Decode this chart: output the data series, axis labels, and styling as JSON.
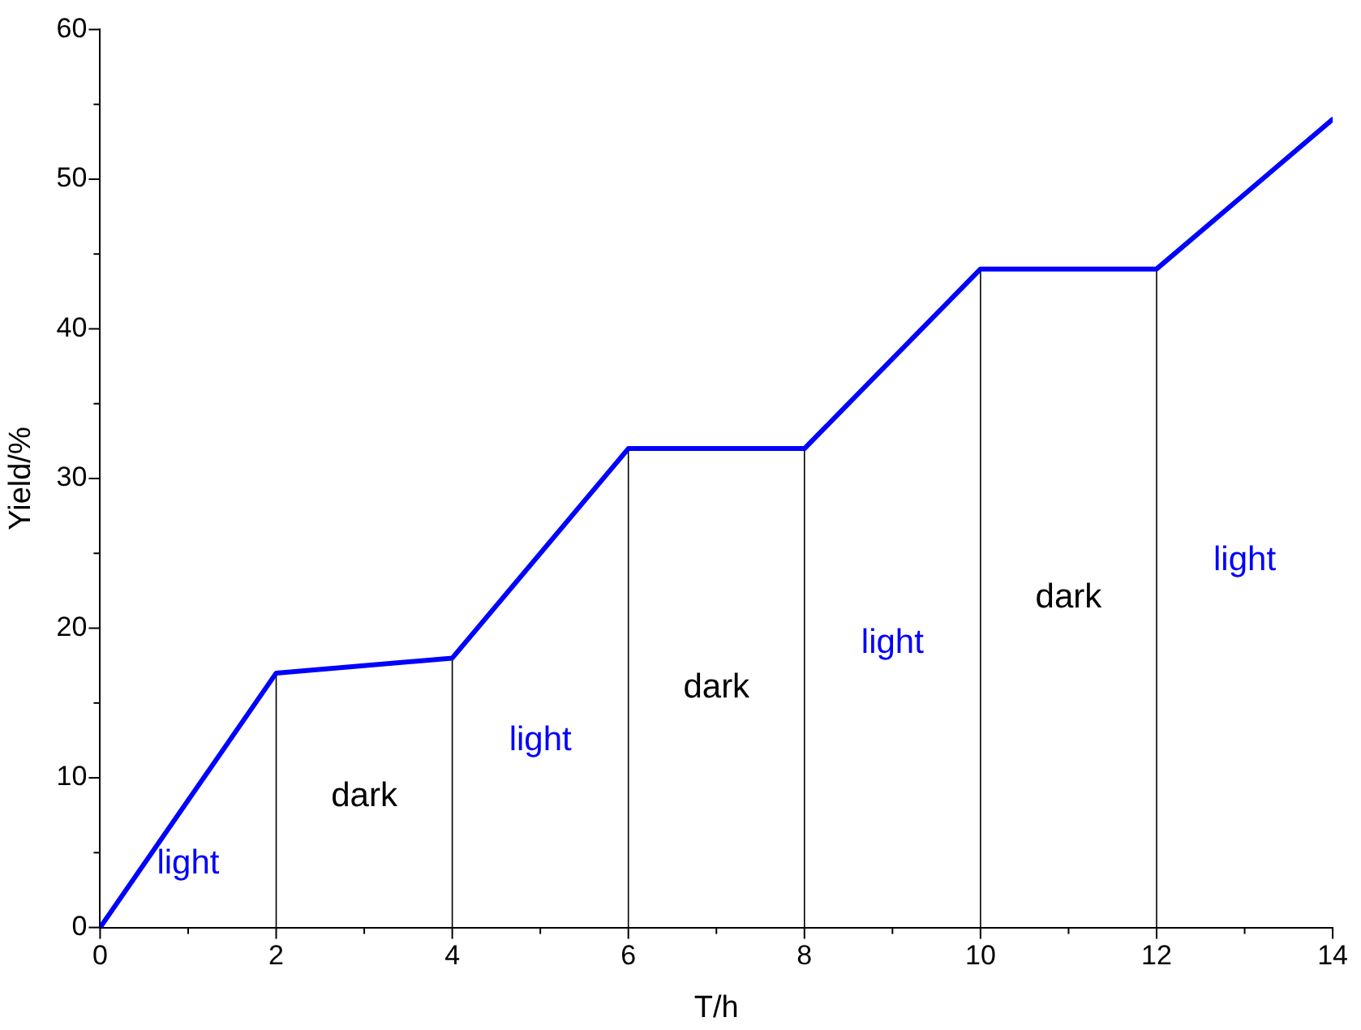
{
  "chart_data": {
    "type": "line",
    "xlabel": "T/h",
    "ylabel": "Yield/%",
    "x": [
      0,
      2,
      4,
      6,
      8,
      10,
      12,
      14
    ],
    "series": [
      {
        "color": "#0000ff",
        "values": [
          0,
          17,
          18,
          32,
          32,
          44,
          44,
          54
        ]
      }
    ],
    "xlim": [
      0,
      14
    ],
    "ylim": [
      0,
      60
    ],
    "xticks": [
      0,
      {
        "value": 1,
        "label": null
      },
      2,
      {
        "value": 3,
        "label": null
      },
      4,
      {
        "value": 5,
        "label": null
      },
      6,
      {
        "value": 7,
        "label": null
      },
      8,
      {
        "value": 9,
        "label": null
      },
      10,
      {
        "value": 11,
        "label": null
      },
      12,
      {
        "value": 13,
        "label": null
      },
      14
    ],
    "yticks": [
      0,
      {
        "value": 5,
        "label": null
      },
      10,
      {
        "value": 15,
        "label": null
      },
      20,
      {
        "value": 25,
        "label": null
      },
      30,
      {
        "value": 35,
        "label": null
      },
      40,
      {
        "value": 45,
        "label": null
      },
      50,
      {
        "value": 55,
        "label": null
      },
      60
    ],
    "ref_lines": [
      {
        "axis": "x",
        "value": 2,
        "color": "#000000"
      },
      {
        "axis": "x",
        "value": 4,
        "color": "#000000"
      },
      {
        "axis": "x",
        "value": 6,
        "color": "#000000"
      },
      {
        "axis": "x",
        "value": 8,
        "color": "#000000"
      },
      {
        "axis": "x",
        "value": 10,
        "color": "#000000"
      },
      {
        "axis": "x",
        "value": 12,
        "color": "#000000"
      }
    ],
    "annotations": [
      "light",
      "dark",
      "light",
      "dark",
      "light",
      "dark",
      "light"
    ],
    "grid": false,
    "legend": false,
    "marker": "none",
    "line_style": "solid"
  }
}
